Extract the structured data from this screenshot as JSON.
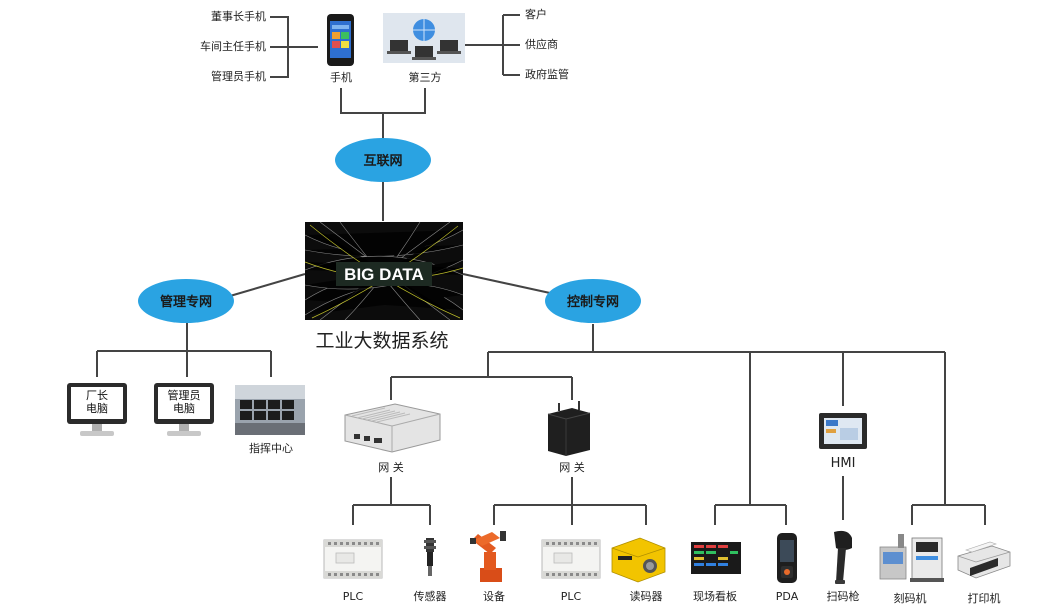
{
  "top": {
    "phone_users": [
      "董事长手机",
      "车间主任手机",
      "管理员手机"
    ],
    "phone_label": "手机",
    "third_party_label": "第三方",
    "third_parties": [
      "客户",
      "供应商",
      "政府监管"
    ]
  },
  "hubs": {
    "internet": "互联网",
    "mgmt_net": "管理专网",
    "ctrl_net": "控制专网"
  },
  "center": {
    "logo_text": "BIG DATA",
    "system_label": "工业大数据系统"
  },
  "mgmt_terminals": {
    "factory_director": [
      "厂长",
      "电脑"
    ],
    "admin": [
      "管理员",
      "电脑"
    ],
    "command_center": "指挥中心"
  },
  "gateways": [
    "网 关",
    "网 关"
  ],
  "hmi_label": "HMI",
  "devices": [
    "PLC",
    "传感器",
    "设备",
    "PLC",
    "读码器",
    "现场看板",
    "PDA",
    "扫码枪",
    "刻码机",
    "打印机"
  ],
  "colors": {
    "hub_fill": "#2aa3e2",
    "line": "#444444"
  }
}
